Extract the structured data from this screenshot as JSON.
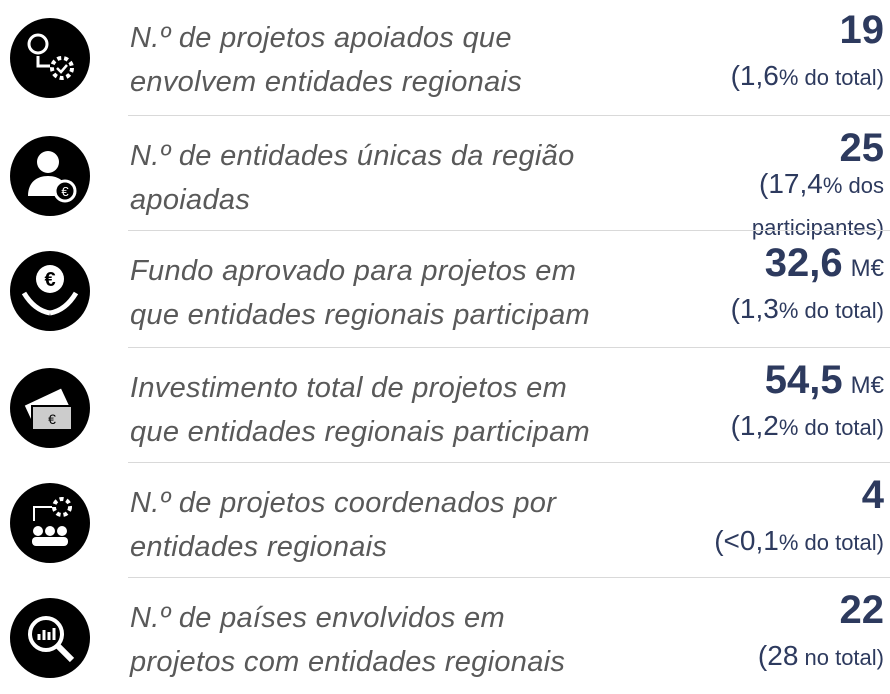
{
  "rows": [
    {
      "label_lines": [
        "N.º de projetos apoiados que",
        "envolvem entidades regionais"
      ],
      "value": "19",
      "unit": null,
      "note_main": "(1,6",
      "note_rest": "% do total)"
    },
    {
      "label_lines": [
        "N.º de entidades únicas da região",
        "apoiadas"
      ],
      "value": "25",
      "unit": null,
      "note_main": "(17,4",
      "note_rest": "% dos participantes)"
    },
    {
      "label_lines": [
        "Fundo aprovado para projetos em",
        "que entidades regionais participam"
      ],
      "value": "32,6",
      "unit": "M€",
      "note_main": "(1,3",
      "note_rest": "% do total)"
    },
    {
      "label_lines": [
        "Investimento total de projetos em",
        "que entidades regionais participam"
      ],
      "value": "54,5",
      "unit": "M€",
      "note_main": "(1,2",
      "note_rest": "% do total)"
    },
    {
      "label_lines": [
        "N.º de projetos coordenados por",
        "entidades regionais"
      ],
      "value": "4",
      "unit": null,
      "note_main": "(<0,1",
      "note_rest": "% do total)"
    },
    {
      "label_lines": [
        "N.º de países envolvidos em",
        "projetos com entidades regionais"
      ],
      "value": "22",
      "unit": null,
      "note_main": "(28",
      "note_rest": " no total)"
    }
  ]
}
